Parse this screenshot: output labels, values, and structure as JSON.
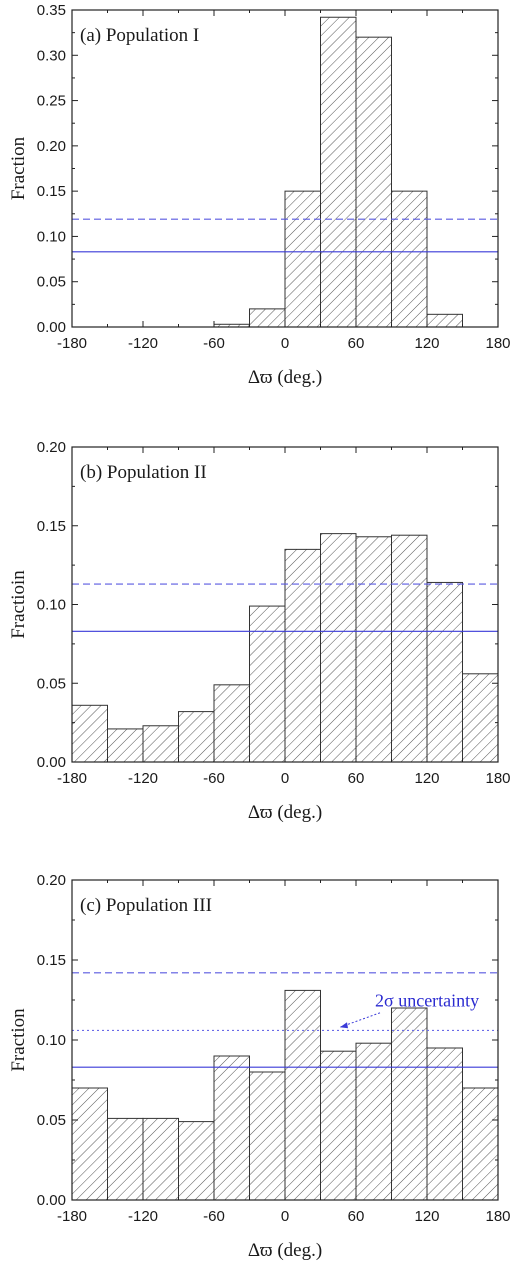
{
  "chart_data": [
    {
      "type": "bar",
      "panel_label": "(a)",
      "title": "Population I",
      "xlabel": "Δϖ (deg.)",
      "ylabel": "Fraction",
      "xlim": [
        -180,
        180
      ],
      "ylim": [
        0,
        0.35
      ],
      "xticks": [
        -180,
        -120,
        -60,
        0,
        60,
        120,
        180
      ],
      "yticks": [
        0.0,
        0.05,
        0.1,
        0.15,
        0.2,
        0.25,
        0.3,
        0.35
      ],
      "ytick_labels": [
        "0.00",
        "0.05",
        "0.10",
        "0.15",
        "0.20",
        "0.25",
        "0.30",
        "0.35"
      ],
      "bin_edges": [
        -60,
        -30,
        0,
        30,
        60,
        90,
        120,
        150
      ],
      "values": [
        0.003,
        0.02,
        0.15,
        0.342,
        0.32,
        0.15,
        0.014
      ],
      "hlines": [
        {
          "y": 0.119,
          "style": "dashed",
          "color": "#5a5ae0"
        },
        {
          "y": 0.083,
          "style": "solid",
          "color": "#3a3ad8"
        }
      ],
      "grid": false
    },
    {
      "type": "bar",
      "panel_label": "(b)",
      "title": "Population II",
      "xlabel": "Δϖ (deg.)",
      "ylabel": "Fractioin",
      "xlim": [
        -180,
        180
      ],
      "ylim": [
        0,
        0.2
      ],
      "xticks": [
        -180,
        -120,
        -60,
        0,
        60,
        120,
        180
      ],
      "yticks": [
        0.0,
        0.05,
        0.1,
        0.15,
        0.2
      ],
      "ytick_labels": [
        "0.00",
        "0.05",
        "0.10",
        "0.15",
        "0.20"
      ],
      "bin_edges": [
        -180,
        -150,
        -120,
        -90,
        -60,
        -30,
        0,
        30,
        60,
        90,
        120,
        150,
        180
      ],
      "values": [
        0.036,
        0.021,
        0.023,
        0.032,
        0.049,
        0.099,
        0.135,
        0.145,
        0.143,
        0.144,
        0.114,
        0.056
      ],
      "hlines": [
        {
          "y": 0.113,
          "style": "dashed",
          "color": "#5a5ae0"
        },
        {
          "y": 0.083,
          "style": "solid",
          "color": "#3a3ad8"
        }
      ],
      "grid": false
    },
    {
      "type": "bar",
      "panel_label": "(c)",
      "title": "Population III",
      "xlabel": "Δϖ (deg.)",
      "ylabel": "Fraction",
      "xlim": [
        -180,
        180
      ],
      "ylim": [
        0,
        0.2
      ],
      "xticks": [
        -180,
        -120,
        -60,
        0,
        60,
        120,
        180
      ],
      "yticks": [
        0.0,
        0.05,
        0.1,
        0.15,
        0.2
      ],
      "ytick_labels": [
        "0.00",
        "0.05",
        "0.10",
        "0.15",
        "0.20"
      ],
      "bin_edges": [
        -180,
        -150,
        -120,
        -90,
        -60,
        -30,
        0,
        30,
        60,
        90,
        120,
        150,
        180
      ],
      "values": [
        0.07,
        0.051,
        0.051,
        0.049,
        0.09,
        0.08,
        0.131,
        0.093,
        0.098,
        0.12,
        0.095,
        0.07
      ],
      "hlines": [
        {
          "y": 0.142,
          "style": "dashed",
          "color": "#5a5ae0"
        },
        {
          "y": 0.106,
          "style": "dotted",
          "color": "#6a6ae8"
        },
        {
          "y": 0.083,
          "style": "solid",
          "color": "#3a3ad8"
        }
      ],
      "annotation": "2σ uncertainty",
      "grid": false
    }
  ]
}
